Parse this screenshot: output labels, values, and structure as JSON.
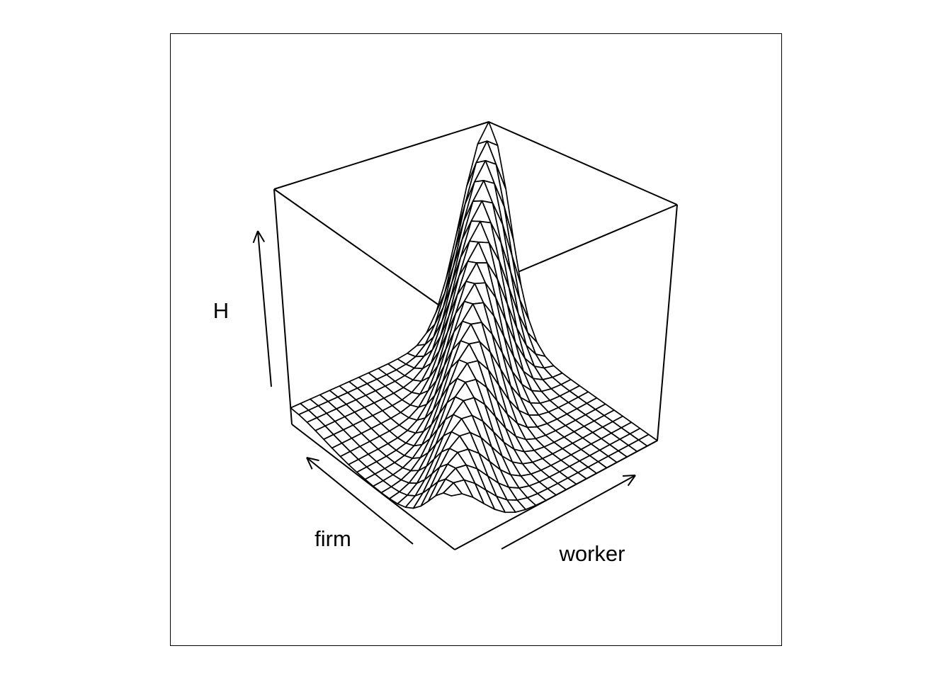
{
  "chart_data": {
    "type": "surface",
    "title": "",
    "x_axis_label": "worker",
    "y_axis_label": "firm",
    "z_axis_label": "H",
    "ticks_shown": false,
    "grid_resolution": 20,
    "ridge_peak_at": [
      1,
      1
    ],
    "max_value_at_corner": [
      1,
      1
    ],
    "colors": {
      "line": "#000000",
      "background": "#ffffff"
    }
  }
}
